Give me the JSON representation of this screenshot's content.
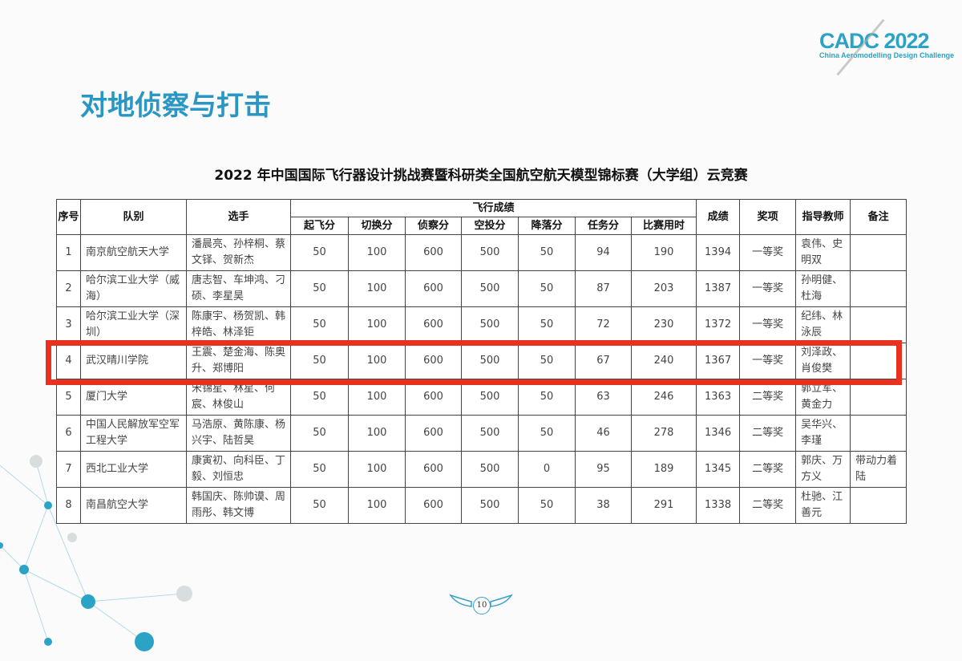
{
  "logo": {
    "text": "CADC 2022",
    "subtitle": "China Aeromodelling Design Challenge"
  },
  "slide_title": "对地侦察与打击",
  "table_title": "2022 年中国国际飞行器设计挑战赛暨科研类全国航空航天模型锦标赛（大学组）云竞赛",
  "headers": {
    "no": "序号",
    "team": "队别",
    "players": "选手",
    "flight": "飞行成绩",
    "sub": [
      "起飞分",
      "切换分",
      "侦察分",
      "空投分",
      "降落分",
      "任务分",
      "比赛用时"
    ],
    "score": "成绩",
    "award": "奖项",
    "advisor": "指导教师",
    "remark": "备注"
  },
  "rows": [
    [
      "1",
      "南京航空航天大学",
      "潘晨亮、孙梓桐、蔡文铎、贺新杰",
      "50",
      "100",
      "600",
      "500",
      "50",
      "94",
      "190",
      "1394",
      "一等奖",
      "袁伟、史明双",
      ""
    ],
    [
      "2",
      "哈尔滨工业大学（威海）",
      "唐志智、车坤鸿、刁硕、李星昊",
      "50",
      "100",
      "600",
      "500",
      "50",
      "87",
      "203",
      "1387",
      "一等奖",
      "孙明健、杜海",
      ""
    ],
    [
      "3",
      "哈尔滨工业大学（深圳）",
      "陈康宇、杨贺凯、韩梓皓、林泽钜",
      "50",
      "100",
      "600",
      "500",
      "50",
      "72",
      "230",
      "1372",
      "一等奖",
      "纪纬、林泳辰",
      ""
    ],
    [
      "4",
      "武汉晴川学院",
      "王震、楚金海、陈奥升、郑博阳",
      "50",
      "100",
      "600",
      "500",
      "50",
      "67",
      "240",
      "1367",
      "一等奖",
      "刘泽政、肖俊樊",
      ""
    ],
    [
      "5",
      "厦门大学",
      "宋锦星、林星、何宸、林俊山",
      "50",
      "100",
      "600",
      "500",
      "50",
      "63",
      "246",
      "1363",
      "二等奖",
      "郭立军、黄金力",
      ""
    ],
    [
      "6",
      "中国人民解放军空军工程大学",
      "马浩原、黄陈康、杨兴宇、陆哲昊",
      "50",
      "100",
      "600",
      "500",
      "50",
      "46",
      "278",
      "1346",
      "二等奖",
      "吴华兴、李瑾",
      ""
    ],
    [
      "7",
      "西北工业大学",
      "康寅初、向科臣、丁毅、刘恒忠",
      "50",
      "100",
      "600",
      "500",
      "0",
      "95",
      "189",
      "1345",
      "二等奖",
      "郭庆、万方义",
      "带动力着陆"
    ],
    [
      "8",
      "南昌航空大学",
      "韩国庆、陈帅谟、周雨彤、韩文博",
      "50",
      "100",
      "600",
      "500",
      "50",
      "38",
      "291",
      "1338",
      "二等奖",
      "杜驰、江善元",
      ""
    ]
  ],
  "highlighted_row": "4",
  "page_number": "10",
  "colors": {
    "title": "#2a96c4",
    "highlight": "#e8321f"
  }
}
